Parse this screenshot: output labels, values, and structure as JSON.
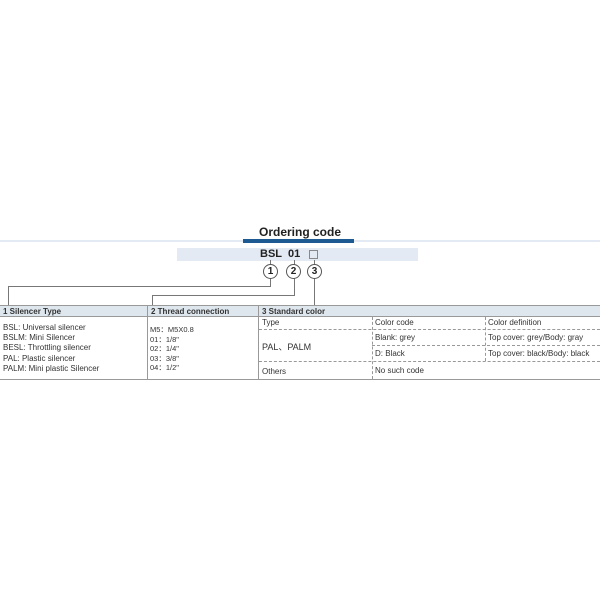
{
  "title": "Ordering code",
  "code": {
    "part1": "BSL",
    "part2": "01",
    "part3_box": "□"
  },
  "markers": [
    "1",
    "2",
    "3"
  ],
  "silencer_type": {
    "header": "1 Silencer Type",
    "items": [
      "BSL: Universal silencer",
      "BSLM: Mini Silencer",
      "BESL: Throttling silencer",
      "PAL:  Plastic silencer",
      "PALM: Mini plastic Silencer"
    ]
  },
  "thread": {
    "header": "2 Thread connection",
    "items": [
      "M5：M5X0.8",
      "01：1/8\"",
      "02：1/4\"",
      "03：3/8\"",
      "04：1/2\""
    ]
  },
  "color": {
    "header": "3 Standard color",
    "columns": [
      "Type",
      "Color code",
      "Color definition"
    ],
    "pal_type": "PAL、PALM",
    "rows": [
      {
        "code": "Blank: grey",
        "definition": "Top cover: grey/Body: gray"
      },
      {
        "code": "D: Black",
        "definition": "Top cover: black/Body: black"
      }
    ],
    "others": {
      "type": "Others",
      "code": "No such code"
    }
  },
  "colors": {
    "accent": "#1d5a92",
    "header_bg": "#dfe7ee",
    "band_bg": "#e3eaf3"
  }
}
